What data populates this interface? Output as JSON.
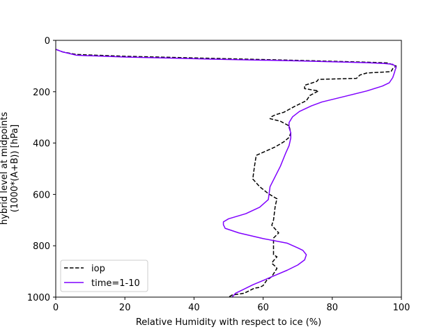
{
  "chart_data": {
    "type": "line",
    "xlabel": "Relative Humidity with respect to ice (%)",
    "ylabel_lines": [
      "hybrid level at midpoints",
      "(1000*(A+B)) [hPa]"
    ],
    "xlim": [
      0,
      100
    ],
    "ylim": [
      1000,
      0
    ],
    "y_inverted": true,
    "xticks": [
      0,
      20,
      40,
      60,
      80,
      100
    ],
    "yticks": [
      0,
      200,
      400,
      600,
      800,
      1000
    ],
    "grid": false,
    "legend_position": "lower-left",
    "series": [
      {
        "name": "iop",
        "color": "#000000",
        "style": "dashed",
        "points": [
          [
            0,
            35
          ],
          [
            2,
            45
          ],
          [
            6,
            55
          ],
          [
            20,
            62
          ],
          [
            45,
            70
          ],
          [
            70,
            78
          ],
          [
            90,
            85
          ],
          [
            96,
            88
          ],
          [
            98.5,
            100
          ],
          [
            97.5,
            110
          ],
          [
            97,
            122
          ],
          [
            90,
            127
          ],
          [
            88,
            135
          ],
          [
            87,
            148
          ],
          [
            76,
            152
          ],
          [
            75.5,
            160
          ],
          [
            72,
            175
          ],
          [
            72,
            188
          ],
          [
            76,
            197
          ],
          [
            73.5,
            215
          ],
          [
            72.5,
            235
          ],
          [
            69,
            258
          ],
          [
            66,
            280
          ],
          [
            63.5,
            290
          ],
          [
            62.5,
            297
          ],
          [
            62,
            305
          ],
          [
            65,
            315
          ],
          [
            67.5,
            333
          ],
          [
            68,
            360
          ],
          [
            67.5,
            378
          ],
          [
            66,
            395
          ],
          [
            63.5,
            415
          ],
          [
            61,
            430
          ],
          [
            58,
            448
          ],
          [
            57.5,
            490
          ],
          [
            57,
            540
          ],
          [
            59,
            570
          ],
          [
            61.5,
            597
          ],
          [
            64,
            617
          ],
          [
            63.5,
            645
          ],
          [
            63,
            700
          ],
          [
            62.5,
            720
          ],
          [
            64.5,
            750
          ],
          [
            63,
            770
          ],
          [
            63,
            810
          ],
          [
            63,
            835
          ],
          [
            64,
            843
          ],
          [
            63,
            858
          ],
          [
            62.5,
            868
          ],
          [
            63.5,
            880
          ],
          [
            64,
            888
          ],
          [
            62.5,
            920
          ],
          [
            61,
            935
          ],
          [
            60,
            955
          ],
          [
            59,
            962
          ],
          [
            57.5,
            965
          ],
          [
            54.5,
            985
          ],
          [
            51,
            992
          ],
          [
            50,
            1000
          ]
        ]
      },
      {
        "name": "time=1-10",
        "color": "#7f00ff",
        "style": "solid",
        "points": [
          [
            0,
            35
          ],
          [
            2,
            45
          ],
          [
            6,
            58
          ],
          [
            20,
            65
          ],
          [
            45,
            73
          ],
          [
            70,
            80
          ],
          [
            90,
            87
          ],
          [
            95,
            90
          ],
          [
            97.5,
            93
          ],
          [
            98.5,
            105
          ],
          [
            98.2,
            115
          ],
          [
            98,
            125
          ],
          [
            97.5,
            145
          ],
          [
            96.5,
            165
          ],
          [
            94.5,
            178
          ],
          [
            90,
            197
          ],
          [
            84,
            217
          ],
          [
            77,
            240
          ],
          [
            74,
            255
          ],
          [
            70.5,
            277
          ],
          [
            68.5,
            298
          ],
          [
            67.5,
            320
          ],
          [
            67.5,
            340
          ],
          [
            68,
            360
          ],
          [
            68,
            380
          ],
          [
            67.5,
            410
          ],
          [
            66.5,
            440
          ],
          [
            65,
            490
          ],
          [
            63.5,
            530
          ],
          [
            62,
            570
          ],
          [
            61.5,
            620
          ],
          [
            59,
            650
          ],
          [
            55,
            675
          ],
          [
            50,
            695
          ],
          [
            48.5,
            707
          ],
          [
            48.5,
            718
          ],
          [
            49,
            732
          ],
          [
            53,
            750
          ],
          [
            60,
            772
          ],
          [
            67,
            790
          ],
          [
            70,
            808
          ],
          [
            71.5,
            818
          ],
          [
            72.5,
            835
          ],
          [
            72,
            855
          ],
          [
            70,
            875
          ],
          [
            67,
            895
          ],
          [
            64,
            912
          ],
          [
            60,
            935
          ],
          [
            57,
            952
          ],
          [
            54,
            972
          ],
          [
            52,
            985
          ],
          [
            51,
            1000
          ]
        ]
      }
    ]
  }
}
